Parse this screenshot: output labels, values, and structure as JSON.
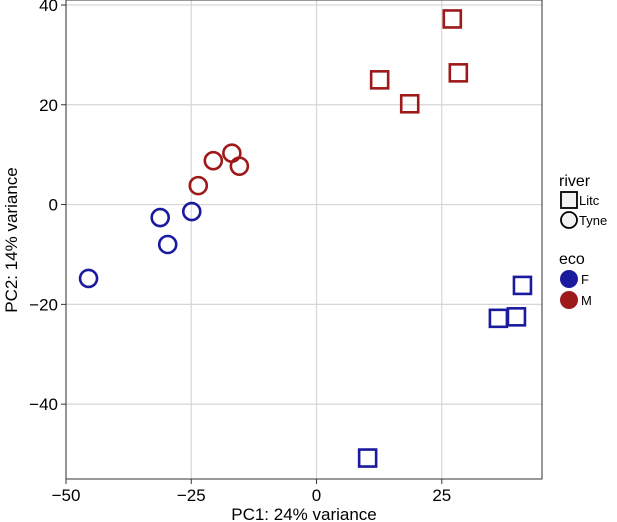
{
  "chart_data": {
    "type": "scatter",
    "xlabel": "PC1: 24% variance",
    "ylabel": "PC2: 14% variance",
    "xlim": [
      -50,
      45
    ],
    "ylim": [
      -55,
      41
    ],
    "x_ticks": [
      -50,
      -25,
      0,
      25
    ],
    "y_ticks": [
      -40,
      -20,
      0,
      20,
      40
    ],
    "x_tick_labels": [
      "−50",
      "−25",
      "0",
      "25"
    ],
    "y_tick_labels": [
      "−40",
      "−20",
      "0",
      "20",
      "40"
    ],
    "grid": true,
    "legend_position": "right",
    "legends": [
      {
        "title": "river",
        "items": [
          {
            "label": "Litc",
            "shape": "square"
          },
          {
            "label": "Tyne",
            "shape": "circle"
          }
        ]
      },
      {
        "title": "eco",
        "items": [
          {
            "label": "F",
            "color": "#1a1a9e"
          },
          {
            "label": "M",
            "color": "#9e1a1a"
          }
        ]
      }
    ],
    "colors": {
      "F": "#1a1a9e",
      "M": "#9e1a1a"
    },
    "points": [
      {
        "x": -45.5,
        "y": -14.8,
        "river": "Tyne",
        "eco": "F"
      },
      {
        "x": -31.2,
        "y": -2.6,
        "river": "Tyne",
        "eco": "F"
      },
      {
        "x": -29.7,
        "y": -8.0,
        "river": "Tyne",
        "eco": "F"
      },
      {
        "x": -24.9,
        "y": -1.4,
        "river": "Tyne",
        "eco": "F"
      },
      {
        "x": -23.6,
        "y": 3.8,
        "river": "Tyne",
        "eco": "M"
      },
      {
        "x": -20.6,
        "y": 8.8,
        "river": "Tyne",
        "eco": "M"
      },
      {
        "x": -16.9,
        "y": 10.3,
        "river": "Tyne",
        "eco": "M"
      },
      {
        "x": -15.4,
        "y": 7.7,
        "river": "Tyne",
        "eco": "M"
      },
      {
        "x": 12.6,
        "y": 25.0,
        "river": "Litc",
        "eco": "M"
      },
      {
        "x": 18.6,
        "y": 20.2,
        "river": "Litc",
        "eco": "M"
      },
      {
        "x": 27.1,
        "y": 37.2,
        "river": "Litc",
        "eco": "M"
      },
      {
        "x": 28.3,
        "y": 26.4,
        "river": "Litc",
        "eco": "M"
      },
      {
        "x": 10.2,
        "y": -50.8,
        "river": "Litc",
        "eco": "F"
      },
      {
        "x": 36.3,
        "y": -22.8,
        "river": "Litc",
        "eco": "F"
      },
      {
        "x": 39.9,
        "y": -22.5,
        "river": "Litc",
        "eco": "F"
      },
      {
        "x": 41.1,
        "y": -16.2,
        "river": "Litc",
        "eco": "F"
      }
    ]
  }
}
